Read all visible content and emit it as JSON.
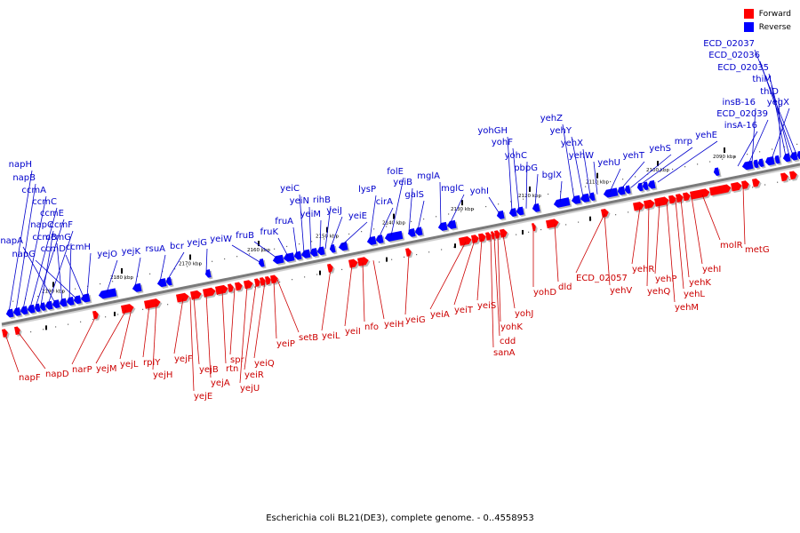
{
  "colors": {
    "forward": "#ff0000",
    "reverse": "#0000ff",
    "forward_text": "#cc0000",
    "reverse_text": "#0000cc"
  },
  "legend": [
    {
      "label": "Forward",
      "color": "#ff0000"
    },
    {
      "label": "Reverse",
      "color": "#0000ff"
    }
  ],
  "caption": "Escherichia coli BL21(DE3), complete genome. - 0..4558953",
  "ticks": [
    "2090 kbp",
    "2100 kbp",
    "2110 kbp",
    "2120 kbp",
    "2130 kbp",
    "2140 kbp",
    "2150 kbp",
    "2160 kbp",
    "2170 kbp",
    "2180 kbp",
    "2190 kbp"
  ],
  "reverse_genes": [
    "napH",
    "napB",
    "ccmA",
    "ccmC",
    "ccmE",
    "napC",
    "ccmF",
    "napA",
    "ccmB",
    "ccmG",
    "napG",
    "ccmD",
    "ccmH",
    "yejO",
    "yejK",
    "rsuA",
    "bcr",
    "yejG",
    "yeiW",
    "fruB",
    "fruK",
    "fruA",
    "yeiC",
    "yeiN",
    "yeiM",
    "rihB",
    "yeiJ",
    "yeiE",
    "lysP",
    "cirA",
    "folE",
    "yeiB",
    "galS",
    "mglA",
    "mglC",
    "yohI",
    "yohGH",
    "yohF",
    "yohC",
    "pbpG",
    "bglX",
    "yehZ",
    "yehY",
    "yehX",
    "yehW",
    "yehU",
    "yehT",
    "yehS",
    "mrp",
    "yehE",
    "insA-16",
    "ECD_02039",
    "insB-16",
    "yegX",
    "thiD",
    "thiM",
    "ECD_02035",
    "ECD_02036",
    "ECD_02037"
  ],
  "forward_genes": [
    "napF",
    "napD",
    "narP",
    "yejM",
    "yejL",
    "rplY",
    "yejH",
    "yejF",
    "yejB",
    "yejE",
    "yejA",
    "rtn",
    "spr",
    "yejU",
    "yeiR",
    "yeiQ",
    "yeiP",
    "setB",
    "yeiL",
    "yeiI",
    "nfo",
    "yeiH",
    "yeiG",
    "yeiA",
    "yeiT",
    "yeiS",
    "sanA",
    "cdd",
    "yohK",
    "yohJ",
    "yohD",
    "dld",
    "ECD_02057",
    "yehV",
    "yehR",
    "yehQ",
    "yehP",
    "yehM",
    "yehL",
    "yehK",
    "yehI",
    "molR",
    "metG"
  ]
}
